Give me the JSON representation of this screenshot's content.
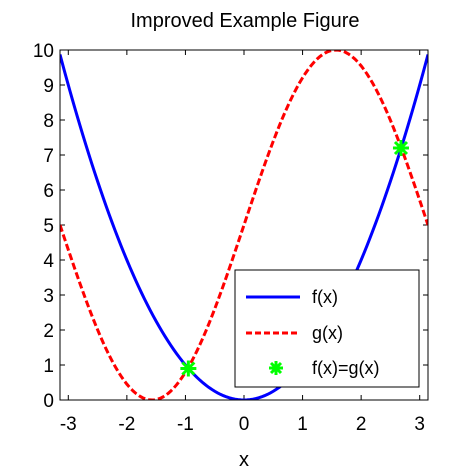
{
  "chart_data": {
    "type": "line",
    "title": "Improved Example Figure",
    "xlabel": "x",
    "ylabel": "",
    "xlim": [
      -3.14159,
      3.14159
    ],
    "ylim": [
      0,
      10
    ],
    "x_ticks": [
      -3,
      -2,
      -1,
      0,
      1,
      2,
      3
    ],
    "y_ticks": [
      0,
      1,
      2,
      3,
      4,
      5,
      6,
      7,
      8,
      9,
      10
    ],
    "grid": false,
    "legend_position": "bottom-right",
    "series": [
      {
        "name": "f(x)",
        "color": "#0000ff",
        "line_style": "solid",
        "x": [
          -3.14159,
          -2.8,
          -2.4,
          -2.0,
          -1.6,
          -1.2,
          -0.8,
          -0.4,
          0.0,
          0.4,
          0.8,
          1.2,
          1.6,
          2.0,
          2.4,
          2.8,
          3.14159
        ],
        "y": [
          9.87,
          7.84,
          5.76,
          4.0,
          2.56,
          1.44,
          0.64,
          0.16,
          0.0,
          0.16,
          0.64,
          1.44,
          2.56,
          4.0,
          5.76,
          7.84,
          9.87
        ]
      },
      {
        "name": "g(x)",
        "color": "#ff0000",
        "line_style": "dashed",
        "x": [
          -3.14159,
          -2.8,
          -2.4,
          -2.0,
          -1.5708,
          -1.2,
          -0.8,
          -0.4,
          0.0,
          0.4,
          0.8,
          1.2,
          1.5708,
          2.0,
          2.4,
          2.8,
          3.14159
        ],
        "y": [
          5.0,
          3.33,
          1.62,
          0.45,
          0.0,
          0.34,
          1.41,
          3.05,
          5.0,
          6.95,
          8.59,
          9.66,
          10.0,
          9.55,
          8.38,
          6.67,
          5.0
        ]
      },
      {
        "name": "f(x)=g(x)",
        "color": "#00ff00",
        "marker": "asterisk",
        "line_style": "none",
        "x": [
          -0.95,
          2.68
        ],
        "y": [
          0.9,
          7.2
        ]
      }
    ]
  }
}
